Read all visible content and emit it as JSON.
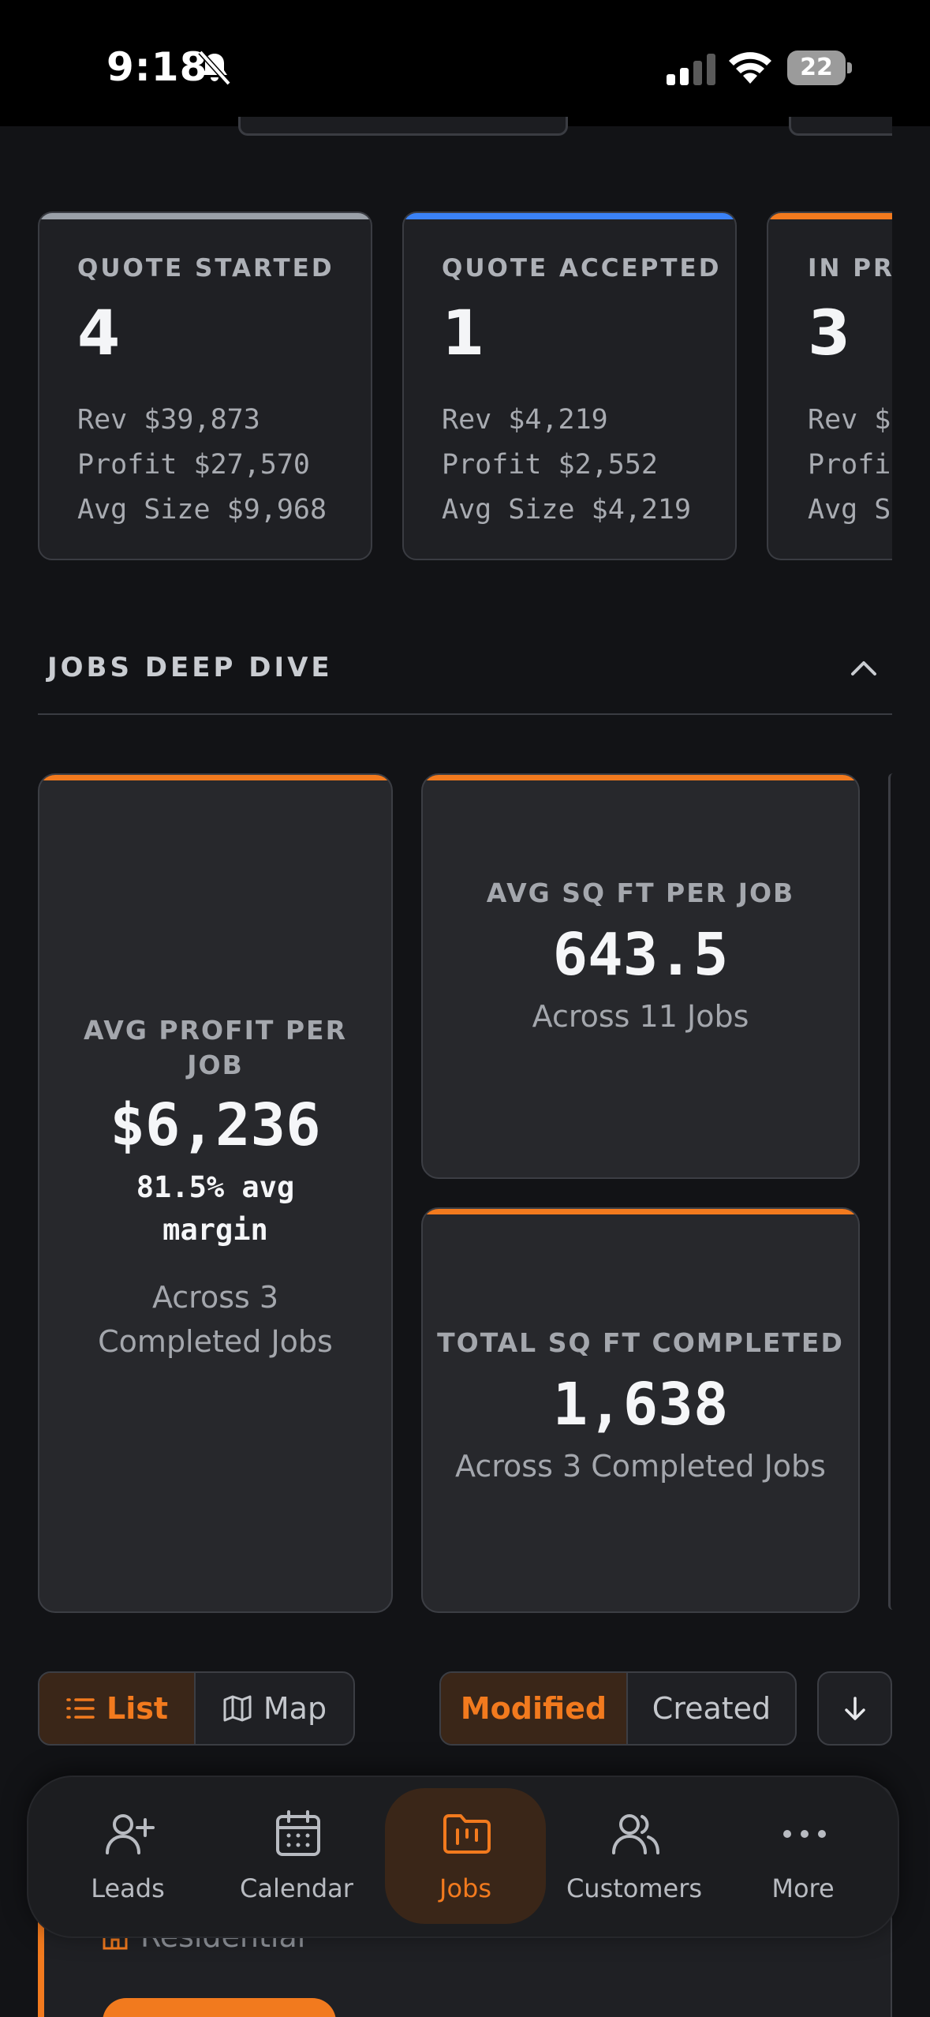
{
  "status_bar": {
    "time": "9:18",
    "battery": "22"
  },
  "status_cards": [
    {
      "label": "QUOTE STARTED",
      "count": "4",
      "rev": "Rev $39,873",
      "profit": "Profit $27,570",
      "avg": "Avg Size $9,968",
      "accent": "#9aa0a8"
    },
    {
      "label": "QUOTE ACCEPTED",
      "count": "1",
      "rev": "Rev $4,219",
      "profit": "Profit $2,552",
      "avg": "Avg Size $4,219",
      "accent": "#3b82f6"
    },
    {
      "label": "IN PRO",
      "count": "3",
      "rev": "Rev $",
      "profit": "Profi",
      "avg": "Avg S",
      "accent": "#f27a1e"
    }
  ],
  "deep_dive": {
    "title": "JOBS DEEP DIVE",
    "avg_profit": {
      "label": "AVG PROFIT PER JOB",
      "value": "$6,236",
      "margin": "81.5% avg margin",
      "sub": "Across 3 Completed Jobs"
    },
    "avg_sqft": {
      "label": "AVG SQ FT PER JOB",
      "value": "643.5",
      "sub": "Across 11 Jobs"
    },
    "total_sqft": {
      "label": "TOTAL SQ FT COMPLETED",
      "value": "1,638",
      "sub": "Across 3 Completed Jobs"
    }
  },
  "view_toggle": {
    "list": "List",
    "map": "Map"
  },
  "sort_toggle": {
    "modified": "Modified",
    "created": "Created"
  },
  "job": {
    "type": "Residential"
  },
  "nav": {
    "leads": "Leads",
    "calendar": "Calendar",
    "jobs": "Jobs",
    "customers": "Customers",
    "more": "More"
  },
  "colors": {
    "accent": "#f27a1e",
    "background": "#121316",
    "card": "#1f2024"
  }
}
